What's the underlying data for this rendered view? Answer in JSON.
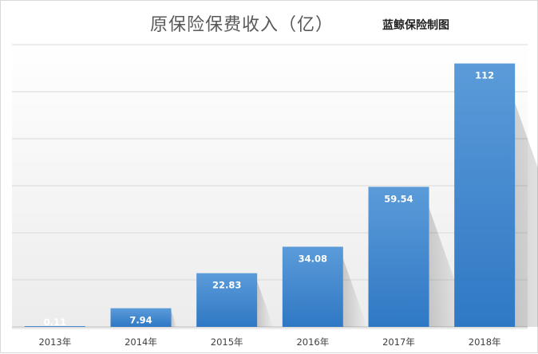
{
  "chart_data": {
    "type": "bar",
    "title": "原保险保费收入（亿）",
    "subtitle": "蓝鲸保险制图",
    "categories": [
      "2013年",
      "2014年",
      "2015年",
      "2016年",
      "2017年",
      "2018年"
    ],
    "values": [
      0.11,
      7.94,
      22.83,
      34.08,
      59.54,
      112
    ],
    "value_labels": [
      "0.11",
      "7.94",
      "22.83",
      "34.08",
      "59.54",
      "112"
    ],
    "ylim": [
      0,
      120
    ],
    "grid": true,
    "bar_color": "#3f8ad2",
    "label_color": "#ffffff"
  }
}
